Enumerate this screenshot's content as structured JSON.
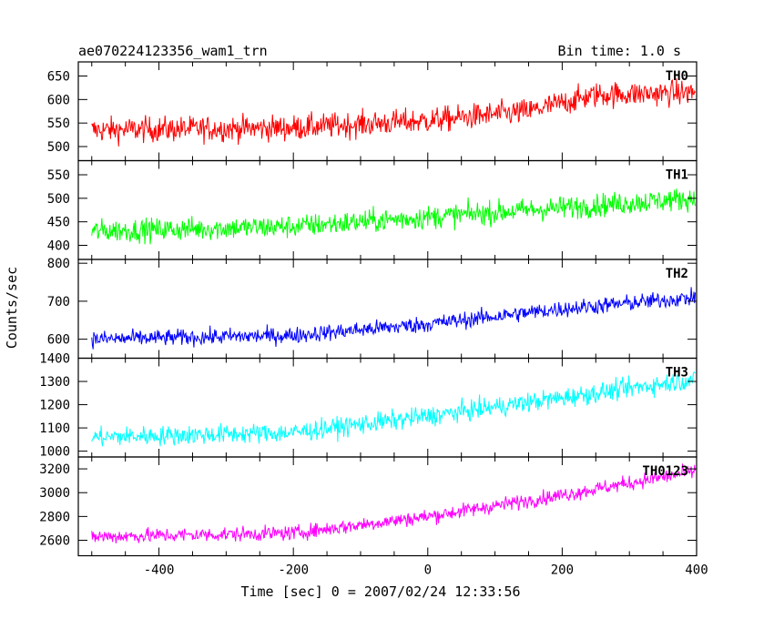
{
  "header": {
    "title": "ae070224123356_wam1_trn",
    "bin_time": "Bin time: 1.0 s"
  },
  "chart_data": {
    "type": "line",
    "xlabel": "Time [sec] 0 = 2007/02/24 12:33:56",
    "ylabel": "Counts/sec",
    "xlim": [
      -520,
      400
    ],
    "x_ticks": [
      -400,
      -200,
      0,
      200,
      400
    ],
    "x_range": [
      -500,
      398
    ],
    "panels": [
      {
        "name": "TH0",
        "color": "#ff0000",
        "ylim": [
          470,
          680
        ],
        "y_ticks": [
          500,
          550,
          600,
          650
        ],
        "trend": [
          [
            -500,
            535
          ],
          [
            -200,
            540
          ],
          [
            0,
            555
          ],
          [
            150,
            575
          ],
          [
            250,
            610
          ],
          [
            398,
            615
          ]
        ],
        "noise": 35
      },
      {
        "name": "TH1",
        "color": "#00ff00",
        "ylim": [
          370,
          580
        ],
        "y_ticks": [
          400,
          450,
          500,
          550
        ],
        "trend": [
          [
            -500,
            430
          ],
          [
            -200,
            440
          ],
          [
            0,
            460
          ],
          [
            200,
            480
          ],
          [
            398,
            500
          ]
        ],
        "noise": 32
      },
      {
        "name": "TH2",
        "color": "#0000ff",
        "ylim": [
          550,
          810
        ],
        "y_ticks": [
          600,
          700,
          800
        ],
        "trend": [
          [
            -500,
            600
          ],
          [
            -200,
            610
          ],
          [
            0,
            640
          ],
          [
            200,
            680
          ],
          [
            398,
            710
          ]
        ],
        "noise": 28
      },
      {
        "name": "TH3",
        "color": "#00ffff",
        "ylim": [
          975,
          1400
        ],
        "y_ticks": [
          1000,
          1100,
          1200,
          1300,
          1400
        ],
        "trend": [
          [
            -500,
            1060
          ],
          [
            -200,
            1080
          ],
          [
            0,
            1150
          ],
          [
            200,
            1230
          ],
          [
            398,
            1310
          ]
        ],
        "noise": 55
      },
      {
        "name": "TH0123",
        "color": "#ff00ff",
        "ylim": [
          2470,
          3300
        ],
        "y_ticks": [
          2600,
          2800,
          3000,
          3200
        ],
        "trend": [
          [
            -500,
            2630
          ],
          [
            -200,
            2660
          ],
          [
            0,
            2800
          ],
          [
            200,
            2980
          ],
          [
            398,
            3180
          ]
        ],
        "noise": 80
      }
    ]
  }
}
